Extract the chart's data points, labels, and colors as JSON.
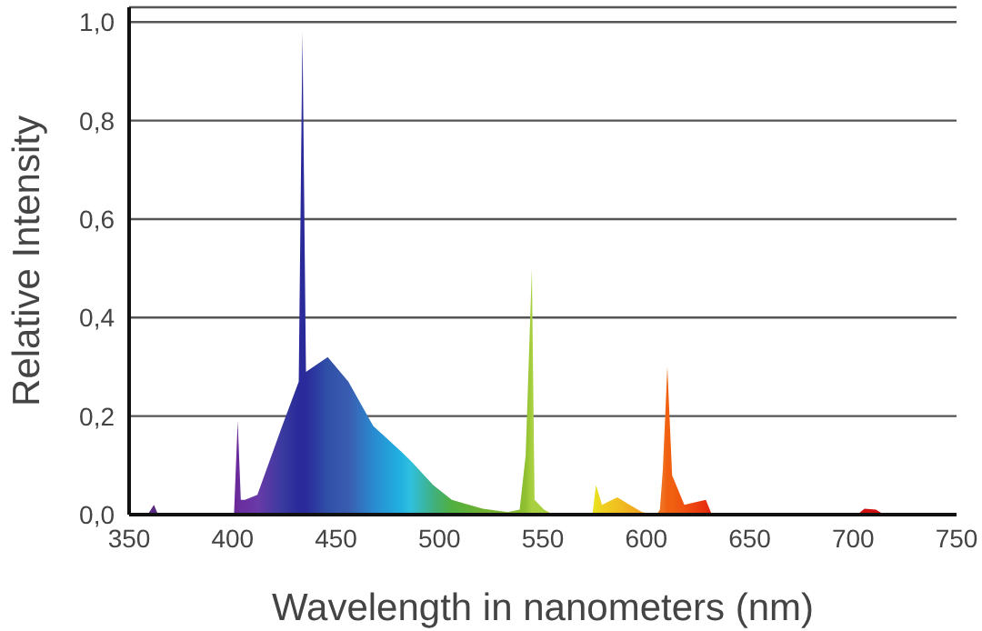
{
  "chart_data": {
    "type": "area",
    "xlabel": "Wavelength in nanometers (nm)",
    "ylabel": "Relative Intensity",
    "x": [
      350,
      359,
      362,
      364,
      399,
      400.7,
      402.5,
      404,
      406,
      412,
      424,
      432,
      433.8,
      435.5,
      446,
      456,
      468,
      481,
      486,
      497,
      506,
      521,
      533,
      538.8,
      541.7,
      544.7,
      546,
      550.6,
      555,
      574,
      575.7,
      578.6,
      586,
      592,
      598,
      605,
      606.6,
      608,
      610.2,
      612.5,
      618.4,
      628.8,
      631.7,
      702,
      705.5,
      711,
      715,
      750
    ],
    "values": [
      0,
      0,
      0.02,
      0,
      0,
      0,
      0.19,
      0.03,
      0.03,
      0.04,
      0.18,
      0.27,
      0.98,
      0.29,
      0.32,
      0.27,
      0.18,
      0.13,
      0.11,
      0.06,
      0.03,
      0.012,
      0.005,
      0.01,
      0.12,
      0.5,
      0.03,
      0.01,
      0,
      0,
      0.06,
      0.02,
      0.035,
      0.02,
      0.005,
      0,
      0.01,
      0.09,
      0.3,
      0.08,
      0.02,
      0.03,
      0,
      0,
      0.012,
      0.01,
      0,
      0
    ],
    "colors": [
      "#5a2a80",
      "#5a2a80",
      "#5a2a80",
      "#5a2a80",
      "#6a2a9a",
      "#6a2a9a",
      "#6a2a9a",
      "#6a30a0",
      "#6a30a0",
      "#6a3aa8",
      "#3a3aa0",
      "#2a2a9a",
      "#2a2a9a",
      "#2a2a9a",
      "#3050a8",
      "#3a5cb0",
      "#2a8ad0",
      "#20b0e0",
      "#30c0e0",
      "#40b080",
      "#50b040",
      "#70b030",
      "#80b830",
      "#88bc30",
      "#90c030",
      "#a8d040",
      "#a8d040",
      "#a8d040",
      "#c0d830",
      "#e8e020",
      "#e8e020",
      "#f0d020",
      "#f0c020",
      "#f0b020",
      "#f0a020",
      "#f08020",
      "#f07020",
      "#f07020",
      "#f06010",
      "#f06010",
      "#f05010",
      "#e83010",
      "#e02010",
      "#d01010",
      "#d01010",
      "#d01010",
      "#d01010",
      "#d01010"
    ],
    "xlim": [
      350,
      750
    ],
    "xticks": [
      350,
      400,
      450,
      500,
      550,
      600,
      650,
      700,
      750
    ],
    "ylim": [
      0,
      1.03
    ],
    "yticks": [
      {
        "value": 0,
        "label": "0,0"
      },
      {
        "value": 0.2,
        "label": "0,2"
      },
      {
        "value": 0.4,
        "label": "0,4"
      },
      {
        "value": 0.6,
        "label": "0,6"
      },
      {
        "value": 0.8,
        "label": "0,8"
      },
      {
        "value": 1,
        "label": "1,0"
      }
    ],
    "grid": "y"
  }
}
